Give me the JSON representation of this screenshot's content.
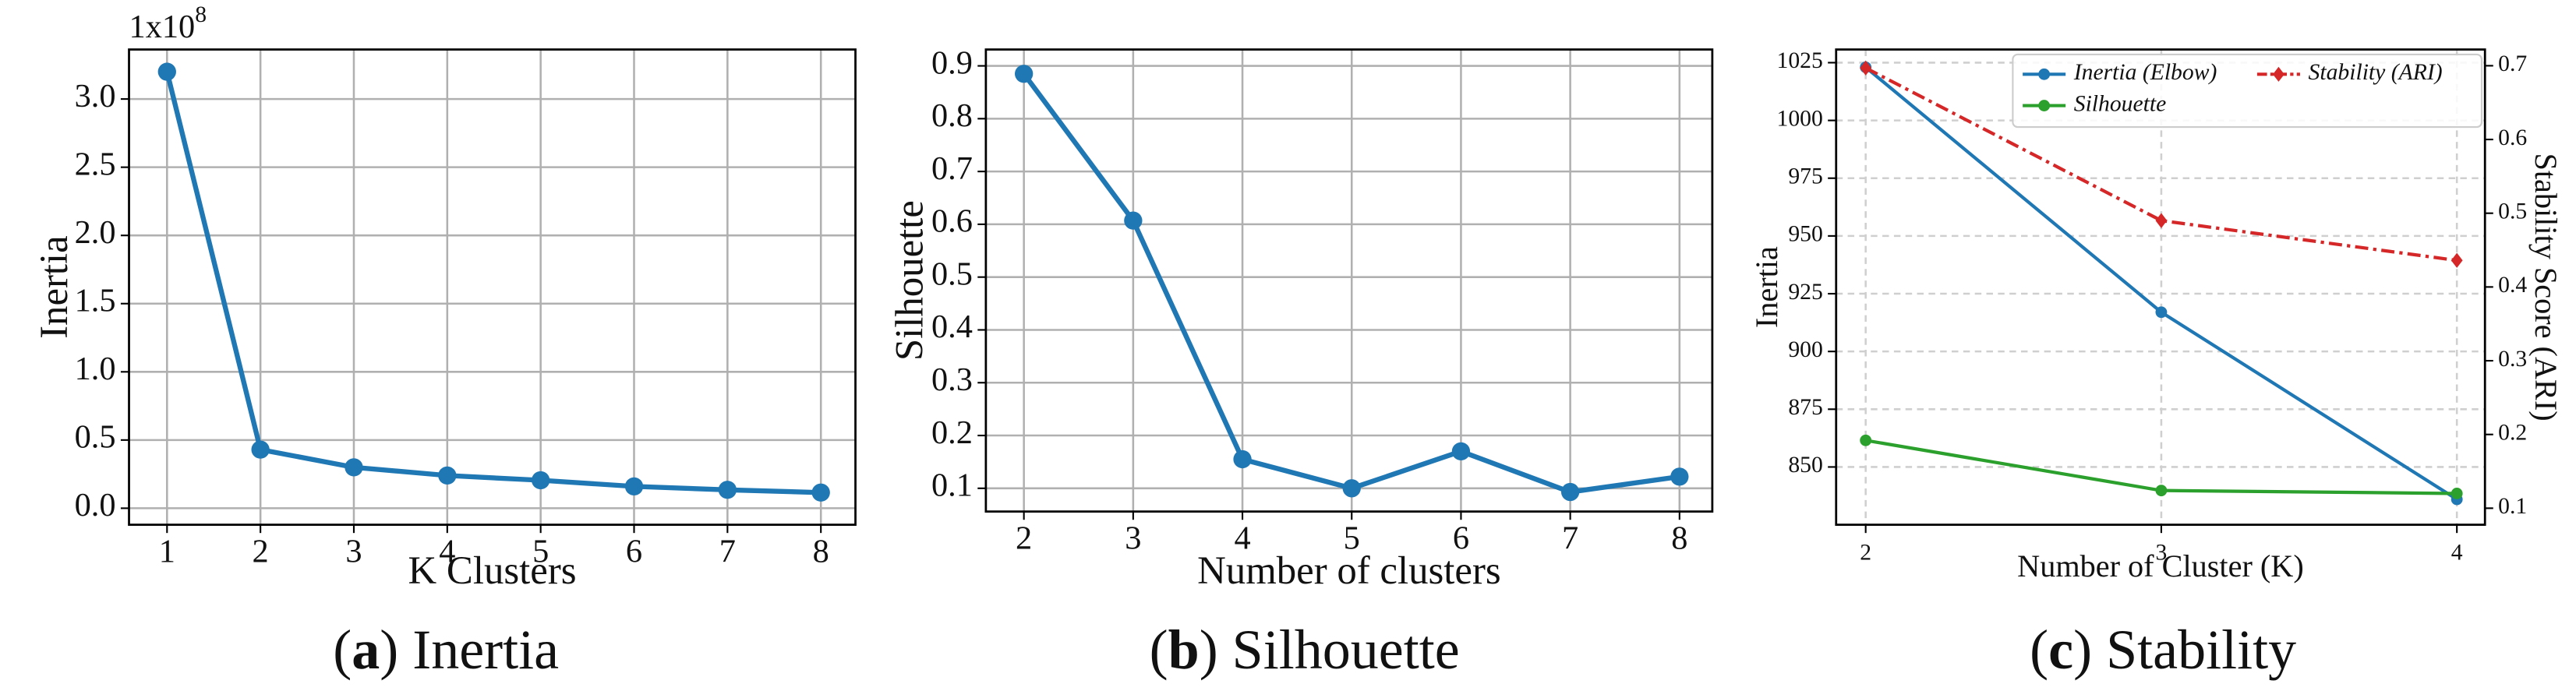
{
  "chart_data": [
    {
      "type": "line",
      "caption_parts": [
        "(",
        "a",
        ") Inertia"
      ],
      "xlabel": "K Clusters",
      "ylabel": "Inertia",
      "offset_text": [
        "1x10",
        "8"
      ],
      "x": [
        1,
        2,
        3,
        4,
        5,
        6,
        7,
        8
      ],
      "series": [
        {
          "color": "#1f77b4",
          "marker": "circle",
          "values": [
            3.2,
            0.43,
            0.3,
            0.24,
            0.205,
            0.16,
            0.135,
            0.115
          ]
        }
      ],
      "xlim": [
        0.593,
        8.37
      ],
      "ylim": [
        -0.121,
        3.363
      ],
      "xticks": [
        1,
        2,
        3,
        4,
        5,
        6,
        7,
        8
      ],
      "yticks": [
        {
          "value": 0,
          "label": "0.0"
        },
        0.5,
        {
          "value": 1,
          "label": "1.0"
        },
        1.5,
        {
          "value": 2,
          "label": "2.0"
        },
        2.5,
        {
          "value": 3,
          "label": "3.0"
        }
      ],
      "grid": "solid"
    },
    {
      "type": "line",
      "caption_parts": [
        "(",
        "b",
        ") Silhouette"
      ],
      "xlabel": "Number of clusters",
      "ylabel": "Silhouette",
      "x": [
        2,
        3,
        4,
        5,
        6,
        7,
        8
      ],
      "series": [
        {
          "color": "#1f77b4",
          "marker": "circle",
          "values": [
            0.885,
            0.607,
            0.155,
            0.1,
            0.17,
            0.093,
            0.122
          ]
        }
      ],
      "xlim": [
        1.652,
        8.3
      ],
      "ylim": [
        0.056,
        0.931
      ],
      "xticks": [
        2,
        3,
        4,
        5,
        6,
        7,
        8
      ],
      "yticks": [
        0.1,
        0.2,
        0.3,
        0.4,
        0.5,
        0.6,
        0.7,
        0.8,
        0.9
      ],
      "grid": "solid"
    },
    {
      "type": "line",
      "caption_parts": [
        "(",
        "c",
        ") Stability"
      ],
      "xlabel": "Number of Cluster (K)",
      "ylabel": "Inertia",
      "y2label": "Stability Score (ARI)",
      "x": [
        2,
        3,
        4
      ],
      "series": [
        {
          "name": "Inertia (Elbow)",
          "color": "#1f77b4",
          "marker": "circle",
          "linestyle": "solid",
          "values": [
            1023,
            917,
            836
          ]
        },
        {
          "name": "Silhouette",
          "color": "#2ca02c",
          "marker": "circle",
          "linestyle": "solid",
          "axis": "y2",
          "values": [
            0.192,
            0.124,
            0.12
          ]
        },
        {
          "name": "Stability (ARI)",
          "color": "#d62728",
          "marker": "diamond",
          "linestyle": "dashdot",
          "axis": "y2",
          "values": [
            0.697,
            0.49,
            0.436
          ]
        }
      ],
      "xlim": [
        1.9,
        4.095
      ],
      "ylim": [
        825,
        1030.7
      ],
      "y2lim": [
        0.0776,
        0.722
      ],
      "xticks": [
        2,
        3,
        4
      ],
      "yticks": [
        850,
        875,
        900,
        925,
        950,
        975,
        1000,
        1025
      ],
      "y2ticks": [
        0.1,
        0.2,
        0.3,
        0.4,
        0.5,
        0.6,
        0.7
      ],
      "grid": "dashed",
      "legend": "upper right",
      "legend_columns": 2
    }
  ]
}
